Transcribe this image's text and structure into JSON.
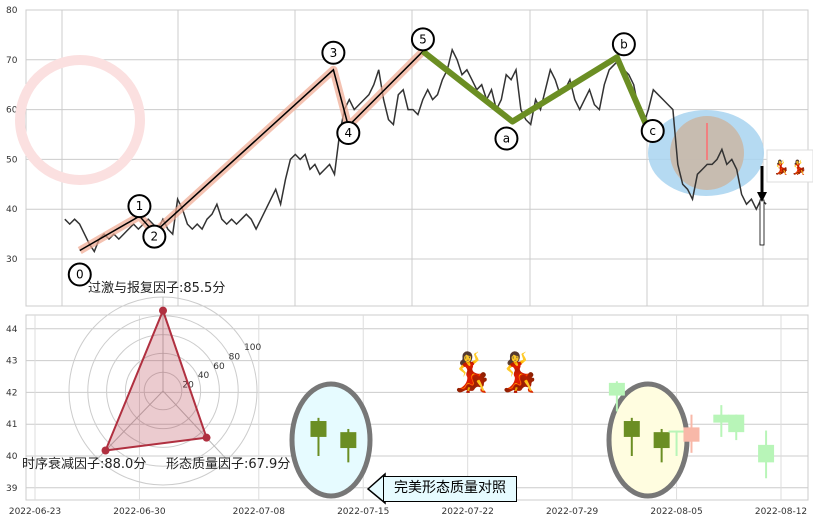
{
  "chart_data": [
    {
      "type": "line",
      "panel": "main",
      "ylim": [
        20,
        80
      ],
      "yticks": [
        30,
        40,
        50,
        60,
        70,
        80
      ],
      "grid": true,
      "series_start": "2022-06-25",
      "series_end": "2022-08-11",
      "price": [
        38,
        37,
        38,
        37,
        35,
        33,
        31.5,
        34,
        35,
        34,
        35,
        34,
        35,
        36,
        37,
        36,
        37,
        38,
        37,
        36,
        38,
        36,
        35,
        42,
        40,
        37,
        36,
        37,
        36,
        38,
        39,
        41,
        38,
        37,
        38,
        37,
        38,
        39,
        38,
        36,
        38,
        40,
        42,
        44,
        41,
        46,
        50,
        51,
        50,
        51,
        48,
        49,
        47,
        48,
        49,
        47,
        55,
        60,
        62,
        60,
        61,
        62,
        63,
        65,
        68,
        62,
        58,
        57,
        63,
        64,
        60,
        60,
        59,
        62,
        64,
        62,
        63,
        66,
        68,
        72,
        70,
        67,
        68,
        66,
        64,
        65,
        62,
        64,
        60,
        62,
        67,
        66,
        68,
        60,
        58,
        57,
        62,
        60,
        64,
        68,
        66,
        63,
        64,
        66,
        62,
        60,
        62,
        64,
        61,
        60,
        65,
        68,
        69,
        70,
        68,
        67,
        65,
        60,
        57,
        60,
        64,
        63,
        62,
        61,
        60,
        49,
        45,
        44,
        42,
        47,
        48,
        49,
        49,
        50,
        52,
        49,
        50,
        48,
        43,
        41,
        42,
        40,
        42,
        41
      ],
      "impulse_wave": [
        {
          "label": "0",
          "date": "2022-06-26",
          "value": 31.7
        },
        {
          "label": "1",
          "date": "2022-06-30",
          "value": 38.6
        },
        {
          "label": "2",
          "date": "2022-07-01",
          "value": 35.3
        },
        {
          "label": "3",
          "date": "2022-07-13",
          "value": 68.0
        },
        {
          "label": "4",
          "date": "2022-07-14",
          "value": 56.7
        },
        {
          "label": "5",
          "date": "2022-07-19",
          "value": 71.7
        }
      ],
      "corrective_wave": [
        {
          "label": "a",
          "date": "2022-07-25",
          "value": 57.6
        },
        {
          "label": "b",
          "date": "2022-08-01",
          "value": 70.5
        },
        {
          "label": "c",
          "date": "2022-08-03",
          "value": 56.7
        }
      ],
      "colors": {
        "price": "#333333",
        "impulse_highlight": "#f0a890",
        "impulse_line": "#000000",
        "corrective": "#6b8e23",
        "ellipse": "#a8d4f0",
        "circle": "#c9b8a8"
      }
    },
    {
      "type": "candlestick",
      "panel": "bottom",
      "ylim": [
        38.7,
        44.6
      ],
      "yticks": [
        39,
        40,
        41,
        42,
        43,
        44
      ],
      "xticks": [
        "2022-06-23",
        "2022-06-30",
        "2022-07-08",
        "2022-07-15",
        "2022-07-22",
        "2022-07-29",
        "2022-08-05",
        "2022-08-12"
      ],
      "grid": true,
      "perfect_candles": [
        {
          "date": "2022-07-12",
          "open": 41.1,
          "close": 40.6,
          "high": 41.2,
          "low": 40.0
        },
        {
          "date": "2022-07-14",
          "open": 40.75,
          "close": 40.25,
          "high": 40.85,
          "low": 39.8
        }
      ],
      "actual_candles": [
        {
          "date": "2022-08-01",
          "open": 42.3,
          "close": 41.9,
          "high": 42.35,
          "low": 41.4,
          "color": "#b8f5b8"
        },
        {
          "date": "2022-08-02",
          "open": 41.1,
          "close": 40.6,
          "high": 41.2,
          "low": 40.0,
          "color": "#6b8e23"
        },
        {
          "date": "2022-08-04",
          "open": 40.75,
          "close": 40.25,
          "high": 40.85,
          "low": 39.8,
          "color": "#6b8e23"
        },
        {
          "date": "2022-08-05",
          "open": 40.8,
          "close": 40.8,
          "high": 40.8,
          "low": 40.0,
          "color": "#b8f5b8"
        },
        {
          "date": "2022-08-06",
          "open": 40.9,
          "close": 40.45,
          "high": 41.3,
          "low": 40.1,
          "color": "#f8b8a8"
        },
        {
          "date": "2022-08-08",
          "open": 41.3,
          "close": 41.05,
          "high": 41.6,
          "low": 40.6,
          "color": "#b8f5b8"
        },
        {
          "date": "2022-08-09",
          "open": 41.3,
          "close": 40.75,
          "high": 41.3,
          "low": 40.5,
          "color": "#b8f5b8"
        },
        {
          "date": "2022-08-11",
          "open": 40.35,
          "close": 39.8,
          "high": 40.8,
          "low": 39.3,
          "color": "#b8f5b8"
        }
      ]
    },
    {
      "type": "radar",
      "rings": [
        20,
        40,
        60,
        80,
        100
      ],
      "factors": [
        {
          "name": "过激与报复因子",
          "score": 85.5,
          "text": "过激与报复因子:85.5分"
        },
        {
          "name": "形态质量因子",
          "score": 67.9,
          "text": "形态质量因子:67.9分"
        },
        {
          "name": "时序衰减因子",
          "score": 88.0,
          "text": "时序衰减因子:88.0分"
        }
      ],
      "color": "#b03040"
    }
  ],
  "annotations": {
    "callout": "完美形态质量对照"
  }
}
